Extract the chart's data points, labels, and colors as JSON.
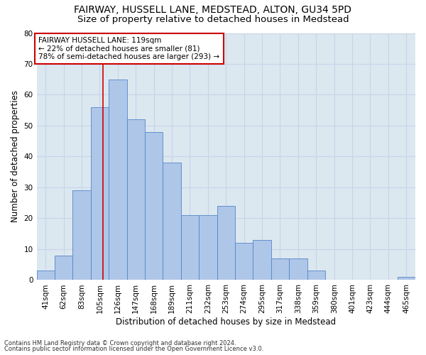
{
  "title_line1": "FAIRWAY, HUSSELL LANE, MEDSTEAD, ALTON, GU34 5PD",
  "title_line2": "Size of property relative to detached houses in Medstead",
  "xlabel": "Distribution of detached houses by size in Medstead",
  "ylabel": "Number of detached properties",
  "footer_line1": "Contains HM Land Registry data © Crown copyright and database right 2024.",
  "footer_line2": "Contains public sector information licensed under the Open Government Licence v3.0.",
  "bar_labels": [
    "41sqm",
    "62sqm",
    "83sqm",
    "105sqm",
    "126sqm",
    "147sqm",
    "168sqm",
    "189sqm",
    "211sqm",
    "232sqm",
    "253sqm",
    "274sqm",
    "295sqm",
    "317sqm",
    "338sqm",
    "359sqm",
    "380sqm",
    "401sqm",
    "423sqm",
    "444sqm",
    "465sqm"
  ],
  "bar_values": [
    3,
    8,
    29,
    56,
    65,
    52,
    48,
    38,
    21,
    21,
    24,
    12,
    13,
    7,
    7,
    3,
    0,
    0,
    0,
    0,
    1
  ],
  "bar_color": "#aec6e8",
  "bar_edge_color": "#5585c8",
  "annotation_line1": "FAIRWAY HUSSELL LANE: 119sqm",
  "annotation_line2": "← 22% of detached houses are smaller (81)",
  "annotation_line3": "78% of semi-detached houses are larger (293) →",
  "annotation_box_color": "#ffffff",
  "annotation_box_edge_color": "#cc0000",
  "vline_color": "#cc0000",
  "ylim": [
    0,
    80
  ],
  "yticks": [
    0,
    10,
    20,
    30,
    40,
    50,
    60,
    70,
    80
  ],
  "grid_color": "#c8d4e8",
  "background_color": "#dce8f0",
  "title_fontsize": 10,
  "subtitle_fontsize": 9.5,
  "axis_label_fontsize": 8.5,
  "tick_fontsize": 7.5,
  "annotation_fontsize": 7.5,
  "footer_fontsize": 6.0
}
